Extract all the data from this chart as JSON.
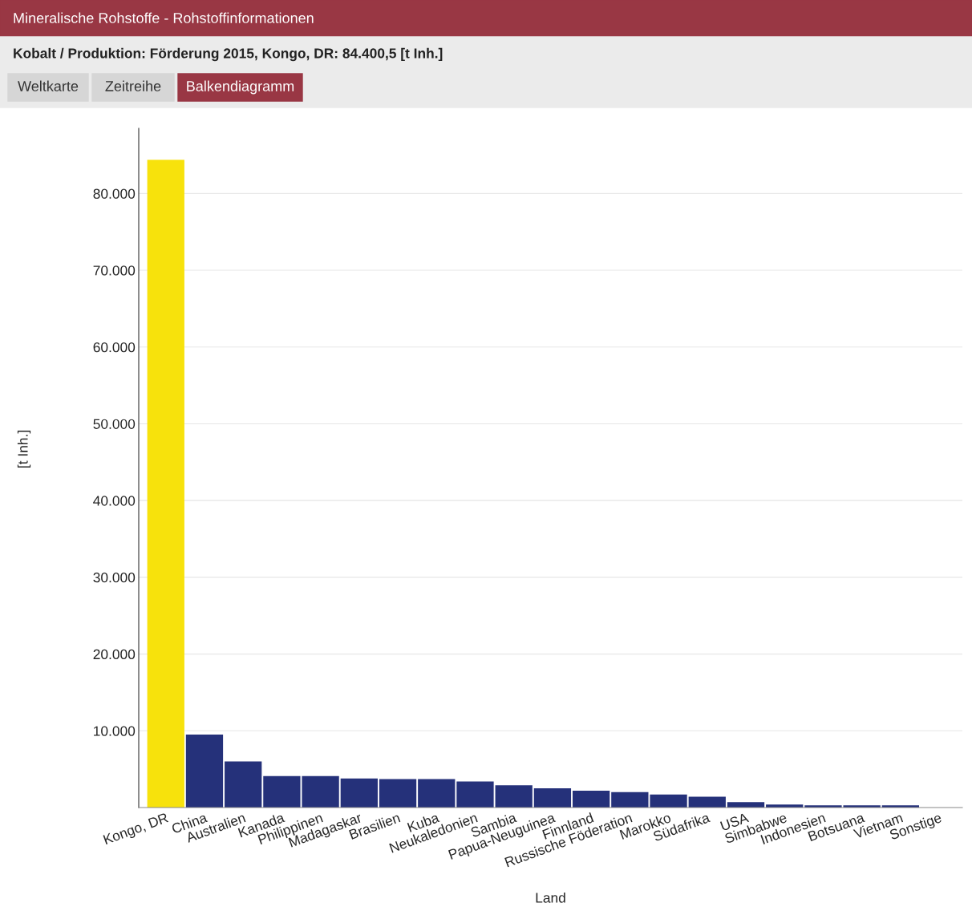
{
  "chart_data": {
    "type": "bar",
    "title": "Mineralische Rohstoffe - Rohstoffinformationen",
    "subtitle": "Kobalt / Produktion: Förderung 2015, Kongo, DR: 84.400,5 [t Inh.]",
    "annotations": [
      "Weltkarte",
      "Zeitreihe",
      "Balkendiagramm"
    ],
    "xlabel": "Land",
    "ylabel": "[t Inh.]",
    "categories": [
      "Kongo, DR",
      "China",
      "Australien",
      "Kanada",
      "Philippinen",
      "Madagaskar",
      "Brasilien",
      "Kuba",
      "Neukaledonien",
      "Sambia",
      "Papua-Neuguinea",
      "Finnland",
      "Russische Föderation",
      "Marokko",
      "Südafrika",
      "USA",
      "Simbabwe",
      "Indonesien",
      "Botsuana",
      "Vietnam",
      "Sonstige"
    ],
    "values": [
      84400,
      9500,
      6000,
      4100,
      4100,
      3800,
      3700,
      3700,
      3400,
      2900,
      2500,
      2200,
      2000,
      1700,
      1400,
      700,
      400,
      300,
      300,
      300,
      null
    ],
    "colors": [
      "#f7e20c",
      "#25317a",
      "#25317a",
      "#25317a",
      "#25317a",
      "#25317a",
      "#25317a",
      "#25317a",
      "#25317a",
      "#25317a",
      "#25317a",
      "#25317a",
      "#25317a",
      "#25317a",
      "#25317a",
      "#25317a",
      "#25317a",
      "#25317a",
      "#25317a",
      "#25317a",
      "#25317a"
    ],
    "ylim": [
      0,
      88500
    ],
    "yticks": [
      {
        "value": 10000,
        "label": "10.000"
      },
      {
        "value": 20000,
        "label": "20.000"
      },
      {
        "value": 30000,
        "label": "30.000"
      },
      {
        "value": 40000,
        "label": "40.000"
      },
      {
        "value": 50000,
        "label": "50.000"
      },
      {
        "value": 60000,
        "label": "60.000"
      },
      {
        "value": 70000,
        "label": "70.000"
      },
      {
        "value": 80000,
        "label": "80.000"
      }
    ],
    "grid": "y",
    "legend": false
  }
}
